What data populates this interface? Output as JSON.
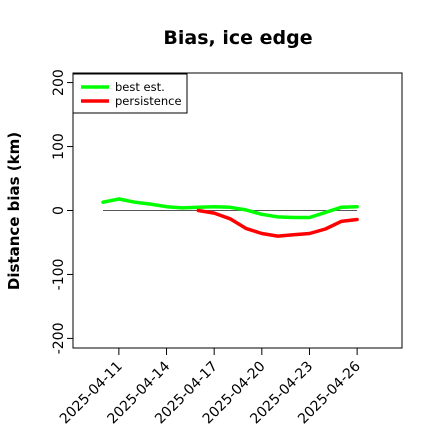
{
  "chart_data": {
    "type": "line",
    "title": "Bias, ice edge",
    "xlabel": "",
    "ylabel": "Distance bias (km)",
    "ylim": [
      -215,
      215
    ],
    "yticks": [
      -200,
      -100,
      0,
      100,
      200
    ],
    "xticks": [
      "2025-04-11",
      "2025-04-14",
      "2025-04-17",
      "2025-04-20",
      "2025-04-23",
      "2025-04-26"
    ],
    "xlim": [
      "2025-04-10",
      "2025-04-27"
    ],
    "zero_line": true,
    "legend_position": "top-left",
    "series": [
      {
        "name": "best est.",
        "color": "#00ff00",
        "x": [
          "2025-04-10",
          "2025-04-11",
          "2025-04-12",
          "2025-04-13",
          "2025-04-14",
          "2025-04-15",
          "2025-04-16",
          "2025-04-17",
          "2025-04-18",
          "2025-04-19",
          "2025-04-20",
          "2025-04-21",
          "2025-04-22",
          "2025-04-23",
          "2025-04-24",
          "2025-04-25",
          "2025-04-26"
        ],
        "values": [
          13,
          18,
          13,
          10,
          6,
          4,
          5,
          6,
          5,
          1,
          -6,
          -10,
          -11,
          -11,
          -3,
          5,
          6
        ]
      },
      {
        "name": "persistence",
        "color": "#ff0000",
        "x": [
          "2025-04-16",
          "2025-04-17",
          "2025-04-18",
          "2025-04-19",
          "2025-04-20",
          "2025-04-21",
          "2025-04-22",
          "2025-04-23",
          "2025-04-24",
          "2025-04-25",
          "2025-04-26"
        ],
        "values": [
          0,
          -4,
          -13,
          -28,
          -36,
          -40,
          -38,
          -36,
          -29,
          -17,
          -14
        ]
      }
    ]
  }
}
